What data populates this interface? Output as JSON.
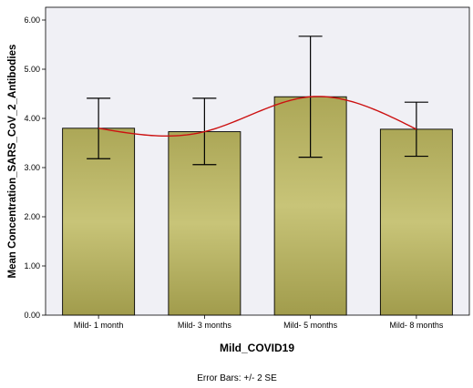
{
  "chart_data": {
    "type": "bar",
    "categories": [
      "Mild- 1 month",
      "Mild- 3 months",
      "Mild- 5 months",
      "Mild- 8 months"
    ],
    "values": [
      3.8,
      3.73,
      4.44,
      3.78
    ],
    "error_bars": {
      "lower": [
        3.18,
        3.06,
        3.21,
        3.23
      ],
      "upper": [
        4.41,
        4.41,
        5.67,
        4.33
      ]
    },
    "xlabel": "Mild_COVID19",
    "ylabel": "Mean Concentration_SARS_CoV_2_Antibodies",
    "ylim": [
      0,
      6
    ],
    "yticks": [
      "0.00",
      "1.00",
      "2.00",
      "3.00",
      "4.00",
      "5.00",
      "6.00"
    ],
    "footnote": "Error Bars: +/- 2 SE",
    "grid": false,
    "colors": {
      "plot_background": "#f0f0f5",
      "bar_fill": "#bfbb6a",
      "bar_stroke": "#000000",
      "fit_line": "#cc1111"
    }
  }
}
